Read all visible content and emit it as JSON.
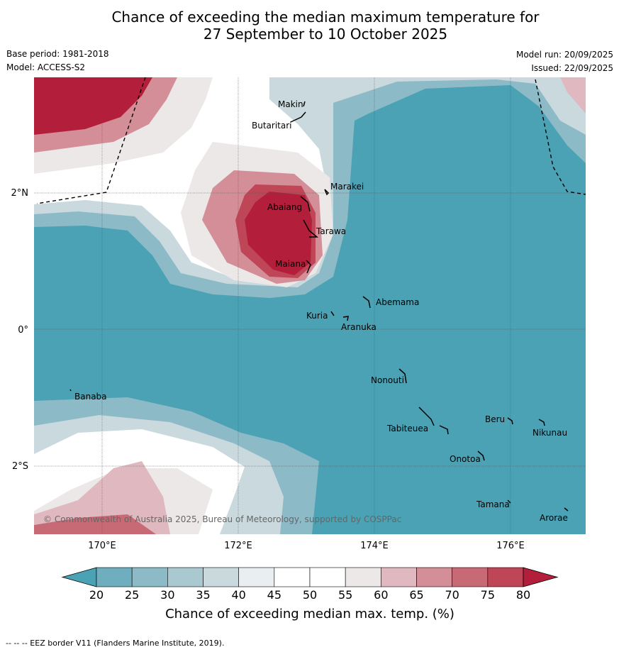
{
  "title": {
    "line1": "Chance of exceeding the median maximum temperature for",
    "line2": "27 September to 10 October 2025"
  },
  "meta": {
    "base_period": "Base period: 1981-2018",
    "model": "Model: ACCESS-S2",
    "model_run": "Model run: 20/09/2025",
    "issued": "Issued: 22/09/2025"
  },
  "axes": {
    "x_ticks": [
      "170°E",
      "172°E",
      "174°E",
      "176°E"
    ],
    "y_ticks": [
      "2°N",
      "0°",
      "2°S"
    ]
  },
  "places": {
    "makin": "Makin",
    "butaritari": "Butaritari",
    "marakei": "Marakei",
    "abaiang": "Abaiang",
    "tarawa": "Tarawa",
    "maiana": "Maiana",
    "abemama": "Abemama",
    "kuria": "Kuria",
    "aranuka": "Aranuka",
    "nonouti": "Nonouti",
    "banaba": "Banaba",
    "tabiteuea": "Tabiteuea",
    "beru": "Beru",
    "nikunau": "Nikunau",
    "onotoa": "Onotoa",
    "tamana": "Tamana",
    "arorae": "Arorae"
  },
  "copyright": "© Commonwealth of Australia 2025, Bureau of Meteorology, supported by COSPPac",
  "colorbar": {
    "ticks": [
      "20",
      "25",
      "30",
      "35",
      "40",
      "45",
      "50",
      "55",
      "60",
      "65",
      "70",
      "75",
      "80"
    ],
    "colors": [
      "#4aa2b4",
      "#6eaebe",
      "#8cbac6",
      "#a9c8cf",
      "#c9d9dd",
      "#e9eef0",
      "#ffffff",
      "#ffffff",
      "#ece8e8",
      "#e0b8c0",
      "#d48e98",
      "#c86a76",
      "#be4656",
      "#b31e3a"
    ],
    "label": "Chance of exceeding median max. temp. (%)"
  },
  "footer": "--  --  -- EEZ border V11 (Flanders Marine Institute, 2019)."
}
